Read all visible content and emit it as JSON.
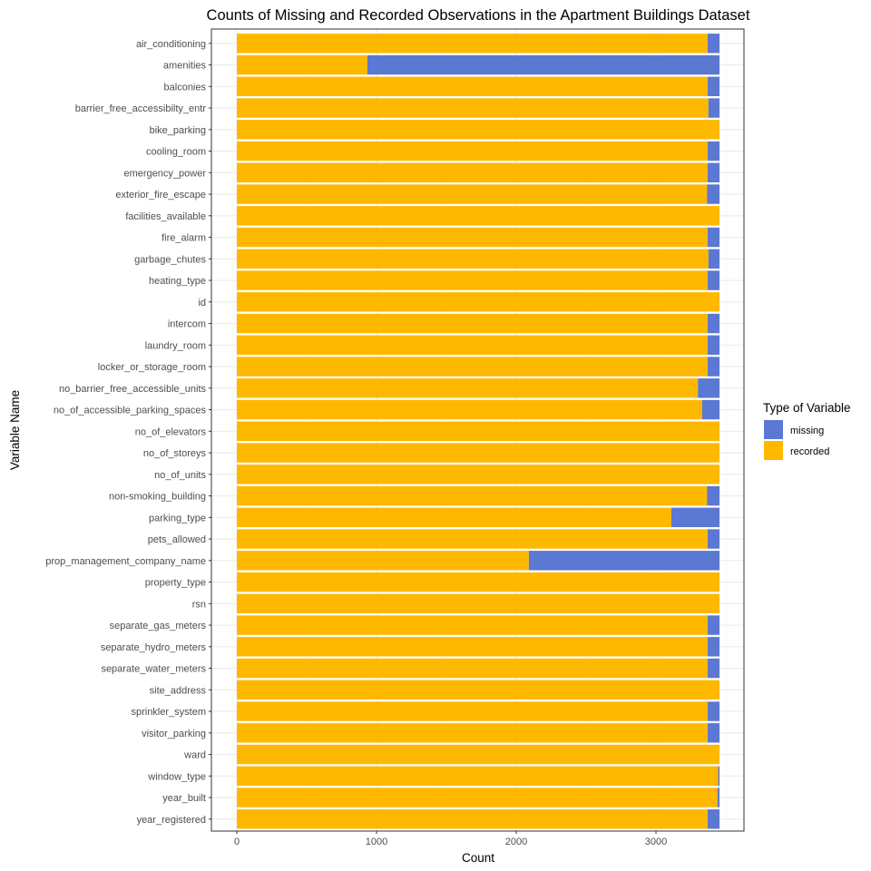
{
  "chart_data": {
    "type": "bar",
    "orientation": "horizontal",
    "stacked": true,
    "title": "Counts of Missing and Recorded Observations in the Apartment Buildings Dataset",
    "xlabel": "Count",
    "ylabel": "Variable Name",
    "xlim": [
      0,
      3650
    ],
    "xticks": [
      0,
      1000,
      2000,
      3000
    ],
    "grid": true,
    "legend": {
      "title": "Type of Variable",
      "placement": "right",
      "entries": [
        {
          "name": "missing",
          "color": "#5B78D2"
        },
        {
          "name": "recorded",
          "color": "#FFB800"
        }
      ]
    },
    "categories": [
      "air_conditioning",
      "amenities",
      "balconies",
      "barrier_free_accessibilty_entr",
      "bike_parking",
      "cooling_room",
      "emergency_power",
      "exterior_fire_escape",
      "facilities_available",
      "fire_alarm",
      "garbage_chutes",
      "heating_type",
      "id",
      "intercom",
      "laundry_room",
      "locker_or_storage_room",
      "no_barrier_free_accessible_units",
      "no_of_accessible_parking_spaces",
      "no_of_elevators",
      "no_of_storeys",
      "no_of_units",
      "non-smoking_building",
      "parking_type",
      "pets_allowed",
      "prop_management_company_name",
      "property_type",
      "rsn",
      "separate_gas_meters",
      "separate_hydro_meters",
      "separate_water_meters",
      "site_address",
      "sprinkler_system",
      "visitor_parking",
      "ward",
      "window_type",
      "year_built",
      "year_registered"
    ],
    "series": [
      {
        "name": "recorded",
        "color": "#FFB800",
        "values": [
          3370,
          935,
          3370,
          3375,
          3455,
          3370,
          3370,
          3365,
          3455,
          3370,
          3375,
          3370,
          3455,
          3370,
          3370,
          3370,
          3300,
          3330,
          3455,
          3455,
          3455,
          3365,
          3110,
          3370,
          2090,
          3455,
          3455,
          3370,
          3370,
          3370,
          3455,
          3370,
          3370,
          3455,
          3445,
          3440,
          3370
        ]
      },
      {
        "name": "missing",
        "color": "#5B78D2",
        "values": [
          85,
          2520,
          85,
          80,
          0,
          85,
          85,
          90,
          0,
          85,
          80,
          85,
          0,
          85,
          85,
          85,
          155,
          125,
          0,
          0,
          0,
          90,
          345,
          85,
          1365,
          0,
          0,
          85,
          85,
          85,
          0,
          85,
          85,
          0,
          10,
          15,
          85
        ]
      }
    ]
  }
}
